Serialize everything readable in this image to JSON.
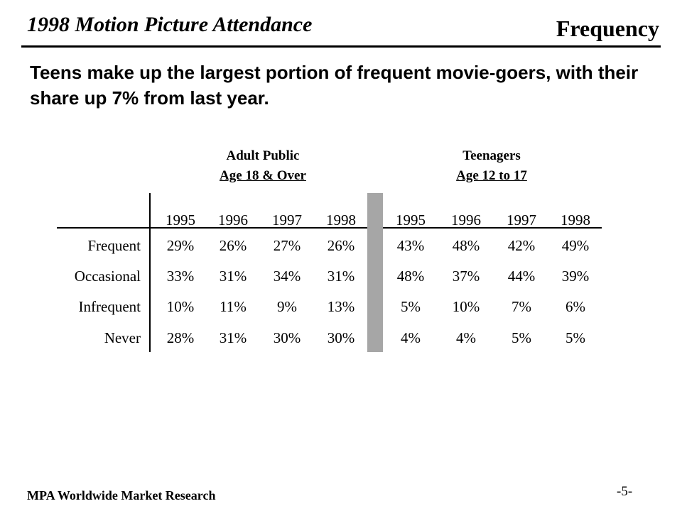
{
  "header": {
    "title": "1998 Motion Picture Attendance",
    "section": "Frequency"
  },
  "subtitle": "Teens make up the largest portion of frequent movie-goers, with their share up 7% from last year.",
  "table": {
    "groups": [
      {
        "line1": "Adult Public",
        "line2": "Age 18 & Over"
      },
      {
        "line1": "Teenagers",
        "line2": "Age 12 to 17"
      }
    ],
    "years": [
      "1995",
      "1996",
      "1997",
      "1998",
      "1995",
      "1996",
      "1997",
      "1998"
    ],
    "rows": [
      {
        "label": "Frequent",
        "values": [
          "29%",
          "26%",
          "27%",
          "26%",
          "43%",
          "48%",
          "42%",
          "49%"
        ]
      },
      {
        "label": "Occasional",
        "values": [
          "33%",
          "31%",
          "34%",
          "31%",
          "48%",
          "37%",
          "44%",
          "39%"
        ]
      },
      {
        "label": "Infrequent",
        "values": [
          "10%",
          "11%",
          "9%",
          "13%",
          "5%",
          "10%",
          "7%",
          "6%"
        ]
      },
      {
        "label": "Never",
        "values": [
          "28%",
          "31%",
          "30%",
          "30%",
          "4%",
          "4%",
          "5%",
          "5%"
        ]
      }
    ]
  },
  "footer": {
    "source": "MPA Worldwide Market Research",
    "page": "-5-"
  }
}
